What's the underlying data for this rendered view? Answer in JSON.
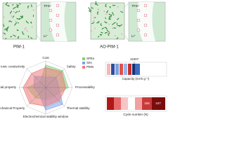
{
  "panels": {
    "left": {
      "label": "PIM-1",
      "anion": "TFSI⁻",
      "cation": "Li⁺"
    },
    "right": {
      "label": "AO-PIM-1",
      "anion": "TFSI⁻",
      "cation": "Li⁺"
    }
  },
  "chart_data": {
    "type": "radar",
    "axes": [
      "Cost",
      "Safety",
      "Processability",
      "Thermal stability",
      "Electrochemical stability window",
      "Mechanical Property",
      "Interfacial property",
      "Ionic conductivity"
    ],
    "rlim": [
      0,
      1
    ],
    "series": [
      {
        "name": "SPEs",
        "color": "#7fd17f",
        "values": [
          0.85,
          0.9,
          0.85,
          0.45,
          0.45,
          0.55,
          0.7,
          0.3
        ]
      },
      {
        "name": "SIIs",
        "color": "#7fa3e8",
        "values": [
          0.4,
          0.55,
          0.5,
          0.9,
          0.85,
          0.35,
          0.45,
          0.6
        ]
      },
      {
        "name": "PIMs",
        "color": "#f07a7a",
        "values": [
          0.75,
          0.85,
          0.75,
          0.7,
          0.7,
          0.85,
          0.85,
          0.75
        ]
      }
    ],
    "legend": "top-right"
  },
  "strips": {
    "capacity": {
      "label": "Capacity (mAh g⁻¹)",
      "annotation": "11007"
    },
    "cycle": {
      "label": "Cycle number (N)",
      "annotations": [
        "184",
        "247"
      ]
    }
  }
}
